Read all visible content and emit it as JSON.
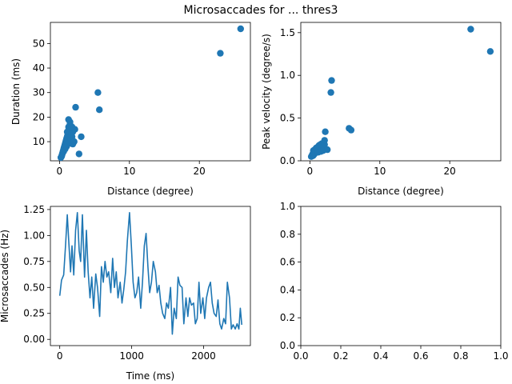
{
  "figure": {
    "title": "Microsaccades for ... thres3"
  },
  "colors": {
    "series": "#1f77b4",
    "axes": "#000000"
  },
  "chart_data": [
    {
      "type": "scatter",
      "xlabel": "Distance (degree)",
      "ylabel": "Duration (ms)",
      "xlim": [
        -1.3,
        27.3
      ],
      "ylim": [
        2.2,
        58.6
      ],
      "xticks": [
        0,
        10,
        20
      ],
      "yticks": [
        10,
        20,
        30,
        40,
        50
      ],
      "x": [
        0.2,
        0.3,
        0.35,
        0.4,
        0.45,
        0.5,
        0.55,
        0.6,
        0.65,
        0.7,
        0.75,
        0.8,
        0.85,
        0.9,
        0.95,
        1.0,
        1.05,
        1.1,
        1.15,
        1.2,
        1.3,
        1.4,
        1.5,
        1.6,
        1.7,
        1.8,
        1.9,
        2.0,
        0.6,
        0.8,
        1.0,
        1.2,
        1.4,
        1.6,
        1.8,
        2.2,
        1.1,
        1.3,
        1.5,
        1.7,
        1.9,
        2.1,
        1.3,
        1.5,
        1.7,
        2.3,
        2.8,
        3.1,
        5.5,
        5.7,
        23.0,
        25.9
      ],
      "y": [
        3.5,
        4.0,
        4.5,
        5.0,
        5.5,
        6.0,
        6.5,
        7.0,
        7.5,
        8.0,
        8.5,
        9.0,
        9.5,
        10.0,
        10.5,
        11.0,
        11.5,
        12.0,
        12.5,
        13.0,
        13.5,
        14.0,
        14.5,
        15.0,
        15.5,
        16.0,
        14.0,
        15.0,
        6.0,
        7.0,
        8.0,
        9.0,
        10.0,
        11.0,
        12.0,
        15.0,
        14.0,
        16.0,
        17.0,
        13.0,
        9.0,
        10.0,
        19.0,
        18.0,
        16.0,
        24.0,
        5.0,
        12.0,
        30.0,
        23.0,
        46.0,
        56.0
      ]
    },
    {
      "type": "scatter",
      "xlabel": "Distance (degree)",
      "ylabel": "Peak velocity (degree/s)",
      "xlim": [
        -1.3,
        27.3
      ],
      "ylim": [
        0.0,
        1.62
      ],
      "xticks": [
        0,
        10,
        20
      ],
      "yticks": [
        0.0,
        0.5,
        1.0,
        1.5
      ],
      "x": [
        0.2,
        0.3,
        0.35,
        0.4,
        0.45,
        0.5,
        0.55,
        0.6,
        0.65,
        0.7,
        0.75,
        0.8,
        0.85,
        0.9,
        0.95,
        1.0,
        1.1,
        1.2,
        1.3,
        1.4,
        1.5,
        1.6,
        1.7,
        1.8,
        1.9,
        2.0,
        0.5,
        0.7,
        0.9,
        1.1,
        1.3,
        1.5,
        1.7,
        1.9,
        2.1,
        1.2,
        1.6,
        2.0,
        2.1,
        2.2,
        2.5,
        3.0,
        3.1,
        5.6,
        5.9,
        23.0,
        25.8
      ],
      "y": [
        0.05,
        0.06,
        0.07,
        0.08,
        0.06,
        0.09,
        0.07,
        0.1,
        0.08,
        0.11,
        0.09,
        0.12,
        0.1,
        0.13,
        0.11,
        0.14,
        0.12,
        0.15,
        0.13,
        0.16,
        0.14,
        0.17,
        0.15,
        0.18,
        0.12,
        0.14,
        0.12,
        0.13,
        0.15,
        0.16,
        0.18,
        0.19,
        0.2,
        0.17,
        0.19,
        0.1,
        0.11,
        0.13,
        0.24,
        0.34,
        0.13,
        0.8,
        0.94,
        0.38,
        0.36,
        1.54,
        1.28
      ]
    },
    {
      "type": "line",
      "xlabel": "Time (ms)",
      "ylabel": "Microsaccades (Hz)",
      "xlim": [
        -130,
        2650
      ],
      "ylim": [
        -0.06,
        1.28
      ],
      "xticks": [
        0,
        1000,
        2000
      ],
      "yticks": [
        0.0,
        0.25,
        0.5,
        0.75,
        1.0,
        1.25
      ],
      "x": [
        0,
        25,
        55,
        80,
        105,
        125,
        150,
        170,
        195,
        220,
        245,
        270,
        290,
        315,
        345,
        370,
        395,
        420,
        445,
        470,
        500,
        525,
        555,
        580,
        605,
        630,
        655,
        680,
        710,
        735,
        760,
        785,
        810,
        840,
        865,
        890,
        915,
        940,
        970,
        995,
        1020,
        1045,
        1070,
        1095,
        1125,
        1150,
        1175,
        1200,
        1225,
        1250,
        1275,
        1300,
        1330,
        1355,
        1380,
        1405,
        1430,
        1460,
        1485,
        1510,
        1540,
        1565,
        1590,
        1620,
        1645,
        1670,
        1700,
        1725,
        1755,
        1780,
        1805,
        1830,
        1860,
        1885,
        1910,
        1935,
        1960,
        1990,
        2015,
        2040,
        2070,
        2095,
        2120,
        2145,
        2175,
        2200,
        2225,
        2250,
        2280,
        2305,
        2330,
        2360,
        2385,
        2410,
        2440,
        2465,
        2490,
        2510,
        2530
      ],
      "y": [
        0.42,
        0.57,
        0.62,
        0.9,
        1.2,
        0.95,
        0.65,
        0.9,
        0.62,
        1.05,
        1.22,
        0.85,
        0.75,
        1.2,
        0.6,
        1.05,
        0.65,
        0.4,
        0.6,
        0.3,
        0.63,
        0.5,
        0.22,
        0.7,
        0.55,
        0.75,
        0.6,
        0.65,
        0.45,
        0.78,
        0.5,
        0.65,
        0.4,
        0.55,
        0.35,
        0.48,
        0.65,
        0.95,
        1.22,
        0.9,
        0.55,
        0.4,
        0.45,
        0.6,
        0.3,
        0.55,
        0.9,
        1.02,
        0.7,
        0.45,
        0.55,
        0.75,
        0.65,
        0.45,
        0.52,
        0.35,
        0.25,
        0.2,
        0.35,
        0.3,
        0.5,
        0.05,
        0.3,
        0.2,
        0.6,
        0.52,
        0.5,
        0.15,
        0.4,
        0.22,
        0.4,
        0.33,
        0.35,
        0.15,
        0.2,
        0.55,
        0.25,
        0.4,
        0.2,
        0.4,
        0.5,
        0.55,
        0.35,
        0.25,
        0.22,
        0.38,
        0.15,
        0.1,
        0.2,
        0.15,
        0.55,
        0.4,
        0.1,
        0.14,
        0.1,
        0.15,
        0.1,
        0.3,
        0.14
      ]
    },
    {
      "type": "scatter",
      "xlabel": "",
      "ylabel": "",
      "xlim": [
        0,
        1
      ],
      "ylim": [
        0,
        1
      ],
      "xticks": [
        0.0,
        0.2,
        0.4,
        0.6,
        0.8,
        1.0
      ],
      "yticks": [
        0.0,
        0.2,
        0.4,
        0.6,
        0.8,
        1.0
      ],
      "x": [],
      "y": []
    }
  ]
}
